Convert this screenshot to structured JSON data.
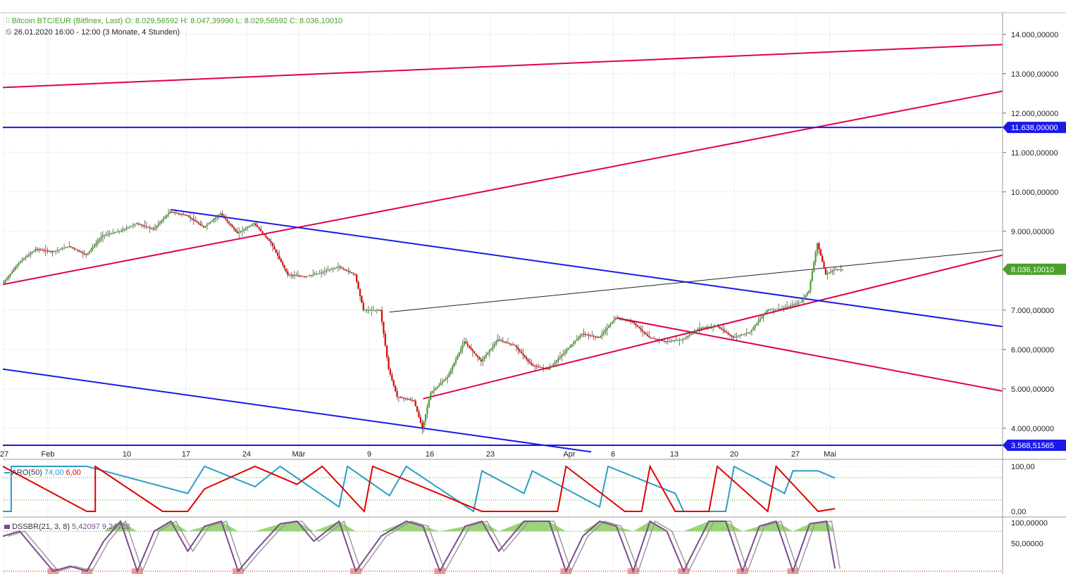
{
  "header": {
    "instrument": "Bitcoin BTC/EUR (Bitfinex, Last)",
    "ohlc": "O: 8.029,56592  H: 8.047,39990  L: 8.029,56592  C: 8.036,10010",
    "range": "26.01.2020 16:00 - 12:00",
    "period": "(3 Monate, 4 Stunden)",
    "clock_icon": "clock-icon",
    "candle_icon": "candlestick-icon"
  },
  "colors": {
    "up": "#4aa02c",
    "down": "#e00000",
    "blue_line": "#1a1ae6",
    "red_line": "#e0004e",
    "aroon_up": "#2b9ec4",
    "aroon_down": "#e00000",
    "dss": "#7b4b8f",
    "dss_signal": "#9b9b9b",
    "last_price_bg": "#4aa02c",
    "blue_level_bg": "#1a1ae6"
  },
  "chart_data": {
    "type": "candlestick",
    "x_tick_labels": [
      "27",
      "Feb",
      "10",
      "17",
      "24",
      "Mär",
      "9",
      "16",
      "23",
      "Apr",
      "6",
      "13",
      "20",
      "27",
      "Mai"
    ],
    "y_tick_labels": [
      "14.000,00000",
      "13.000,00000",
      "12.000,00000",
      "11.000,00000",
      "10.000,00000",
      "9.000,00000",
      "7.000,00000",
      "6.000,00000",
      "5.000,00000",
      "4.000,00000"
    ],
    "y_ticks": [
      14000,
      13000,
      12000,
      11000,
      10000,
      9000,
      7000,
      6000,
      5000,
      4000
    ],
    "ylim": [
      3300,
      14550
    ],
    "x_range_days": [
      0,
      100
    ],
    "price_path": [
      [
        0,
        7650
      ],
      [
        2,
        8200
      ],
      [
        4,
        8550
      ],
      [
        6,
        8480
      ],
      [
        8,
        8620
      ],
      [
        10,
        8400
      ],
      [
        12,
        8900
      ],
      [
        14,
        9000
      ],
      [
        16,
        9200
      ],
      [
        18,
        9050
      ],
      [
        20,
        9500
      ],
      [
        22,
        9400
      ],
      [
        24,
        9100
      ],
      [
        26,
        9450
      ],
      [
        28,
        8950
      ],
      [
        30,
        9200
      ],
      [
        32,
        8700
      ],
      [
        34,
        7900
      ],
      [
        36,
        7850
      ],
      [
        38,
        7950
      ],
      [
        40,
        8100
      ],
      [
        42,
        7900
      ],
      [
        43,
        7000
      ],
      [
        45,
        7000
      ],
      [
        46,
        5500
      ],
      [
        47,
        4800
      ],
      [
        49,
        4700
      ],
      [
        50,
        4000
      ],
      [
        51,
        4900
      ],
      [
        53,
        5300
      ],
      [
        55,
        6200
      ],
      [
        57,
        5700
      ],
      [
        59,
        6250
      ],
      [
        61,
        6100
      ],
      [
        63,
        5600
      ],
      [
        65,
        5500
      ],
      [
        67,
        5950
      ],
      [
        69,
        6400
      ],
      [
        71,
        6300
      ],
      [
        73,
        6800
      ],
      [
        75,
        6700
      ],
      [
        77,
        6300
      ],
      [
        79,
        6200
      ],
      [
        81,
        6250
      ],
      [
        83,
        6550
      ],
      [
        85,
        6600
      ],
      [
        87,
        6300
      ],
      [
        89,
        6450
      ],
      [
        91,
        7000
      ],
      [
        93,
        7050
      ],
      [
        95,
        7200
      ],
      [
        96,
        7500
      ],
      [
        97,
        8700
      ],
      [
        98,
        7900
      ],
      [
        99,
        8030
      ],
      [
        100,
        8036
      ]
    ],
    "levels": [
      {
        "name": "blue-level-high",
        "value": 11638,
        "label": "11.638,00000"
      },
      {
        "name": "blue-level-low",
        "value": 3568.51565,
        "label": "3.568,51565"
      }
    ],
    "last_price": {
      "value": 8036.1001,
      "label": "8.036,10010"
    },
    "trendlines": [
      {
        "color": "red",
        "from": [
          0,
          12650
        ],
        "to": [
          120,
          13750
        ]
      },
      {
        "color": "red",
        "from": [
          0,
          7650
        ],
        "to": [
          120,
          12600
        ]
      },
      {
        "color": "red",
        "from": [
          50,
          4750
        ],
        "to": [
          120,
          8450
        ]
      },
      {
        "color": "red",
        "from": [
          73,
          6800
        ],
        "to": [
          120,
          4900
        ]
      },
      {
        "color": "blue",
        "from": [
          20,
          9550
        ],
        "to": [
          120,
          6550
        ]
      },
      {
        "color": "blue",
        "from": [
          0,
          5500
        ],
        "to": [
          70,
          3400
        ]
      },
      {
        "color": "black",
        "from": [
          46,
          6950
        ],
        "to": [
          120,
          8550
        ]
      }
    ],
    "aroon": {
      "label": "ARO(50)",
      "up_value": "74,00",
      "down_value": "6,00",
      "y_tick_labels": [
        "100,00",
        "0,00"
      ],
      "up_path": [
        [
          0,
          0
        ],
        [
          1,
          0
        ],
        [
          1,
          100
        ],
        [
          10,
          100
        ],
        [
          22,
          40
        ],
        [
          24,
          100
        ],
        [
          30,
          55
        ],
        [
          33,
          100
        ],
        [
          40,
          10
        ],
        [
          41,
          100
        ],
        [
          46,
          35
        ],
        [
          48,
          100
        ],
        [
          56,
          0
        ],
        [
          57,
          90
        ],
        [
          62,
          40
        ],
        [
          63,
          90
        ],
        [
          71,
          10
        ],
        [
          72,
          100
        ],
        [
          80,
          40
        ],
        [
          81,
          0
        ],
        [
          86,
          0
        ],
        [
          87,
          100
        ],
        [
          93,
          40
        ],
        [
          94,
          90
        ],
        [
          97,
          90
        ],
        [
          99,
          74
        ]
      ],
      "down_path": [
        [
          0,
          100
        ],
        [
          10,
          0
        ],
        [
          11,
          0
        ],
        [
          11,
          100
        ],
        [
          19,
          0
        ],
        [
          22,
          0
        ],
        [
          24,
          50
        ],
        [
          30,
          100
        ],
        [
          35,
          60
        ],
        [
          38,
          100
        ],
        [
          43,
          0
        ],
        [
          44,
          100
        ],
        [
          57,
          0
        ],
        [
          60,
          0
        ],
        [
          66,
          0
        ],
        [
          67,
          100
        ],
        [
          74,
          0
        ],
        [
          76,
          0
        ],
        [
          77,
          100
        ],
        [
          80,
          0
        ],
        [
          84,
          0
        ],
        [
          85,
          100
        ],
        [
          91,
          0
        ],
        [
          92,
          100
        ],
        [
          97,
          0
        ],
        [
          99,
          6
        ]
      ]
    },
    "dss": {
      "label": "DSSBR(21, 3, 8)",
      "value1": "5,42097",
      "value2": "9,24728",
      "y_tick_labels": [
        "100,00000",
        "50,00000"
      ],
      "path": [
        [
          0,
          70
        ],
        [
          2,
          80
        ],
        [
          4,
          40
        ],
        [
          6,
          0
        ],
        [
          8,
          10
        ],
        [
          10,
          0
        ],
        [
          12,
          60
        ],
        [
          14,
          100
        ],
        [
          16,
          0
        ],
        [
          18,
          80
        ],
        [
          20,
          100
        ],
        [
          22,
          40
        ],
        [
          24,
          90
        ],
        [
          26,
          100
        ],
        [
          28,
          0
        ],
        [
          30,
          40
        ],
        [
          33,
          95
        ],
        [
          35,
          100
        ],
        [
          37,
          60
        ],
        [
          40,
          100
        ],
        [
          42,
          0
        ],
        [
          45,
          70
        ],
        [
          48,
          100
        ],
        [
          50,
          90
        ],
        [
          52,
          0
        ],
        [
          55,
          90
        ],
        [
          57,
          100
        ],
        [
          59,
          40
        ],
        [
          62,
          100
        ],
        [
          65,
          100
        ],
        [
          67,
          0
        ],
        [
          69,
          70
        ],
        [
          71,
          100
        ],
        [
          73,
          90
        ],
        [
          75,
          0
        ],
        [
          77,
          100
        ],
        [
          79,
          80
        ],
        [
          81,
          0
        ],
        [
          84,
          100
        ],
        [
          86,
          100
        ],
        [
          88,
          0
        ],
        [
          90,
          90
        ],
        [
          92,
          100
        ],
        [
          94,
          0
        ],
        [
          96,
          95
        ],
        [
          98,
          100
        ],
        [
          99,
          5
        ]
      ]
    }
  }
}
